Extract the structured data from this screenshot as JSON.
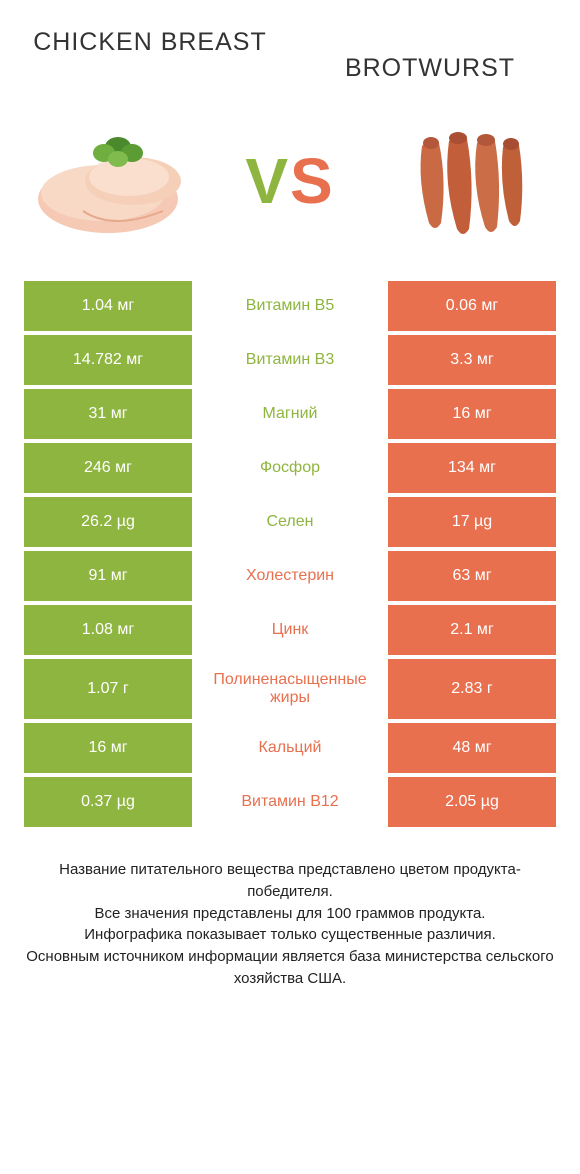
{
  "colors": {
    "green": "#8eb53f",
    "orange": "#e8704f",
    "vs_v": "#8eb53f",
    "vs_s": "#e8704f"
  },
  "header": {
    "left_title": "CHICKEN BREAST",
    "right_title": "BROTWURST",
    "vs_v": "V",
    "vs_s": "S"
  },
  "rows": [
    {
      "left": "1.04 мг",
      "mid": "Витамин B5",
      "right": "0.06 мг",
      "winner": "left",
      "tall": false
    },
    {
      "left": "14.782 мг",
      "mid": "Витамин B3",
      "right": "3.3 мг",
      "winner": "left",
      "tall": false
    },
    {
      "left": "31 мг",
      "mid": "Магний",
      "right": "16 мг",
      "winner": "left",
      "tall": false
    },
    {
      "left": "246 мг",
      "mid": "Фосфор",
      "right": "134 мг",
      "winner": "left",
      "tall": false
    },
    {
      "left": "26.2 µg",
      "mid": "Селен",
      "right": "17 µg",
      "winner": "left",
      "tall": false
    },
    {
      "left": "91 мг",
      "mid": "Холестерин",
      "right": "63 мг",
      "winner": "right",
      "tall": false
    },
    {
      "left": "1.08 мг",
      "mid": "Цинк",
      "right": "2.1 мг",
      "winner": "right",
      "tall": false
    },
    {
      "left": "1.07 г",
      "mid": "Полиненасыщенные жиры",
      "right": "2.83 г",
      "winner": "right",
      "tall": true
    },
    {
      "left": "16 мг",
      "mid": "Кальций",
      "right": "48 мг",
      "winner": "right",
      "tall": false
    },
    {
      "left": "0.37 µg",
      "mid": "Витамин B12",
      "right": "2.05 µg",
      "winner": "right",
      "tall": false
    }
  ],
  "footer": {
    "line1": "Название питательного вещества представлено цветом продукта-победителя.",
    "line2": "Все значения представлены для 100 граммов продукта.",
    "line3": "Инфографика показывает только существенные различия.",
    "line4": "Основным источником информации является база министерства сельского хозяйства США."
  }
}
